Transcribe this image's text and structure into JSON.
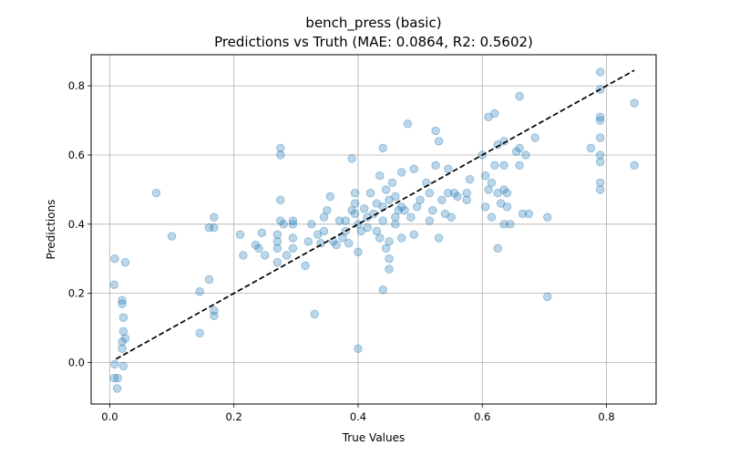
{
  "chart_data": {
    "type": "scatter",
    "title_line1": "bench_press (basic)",
    "title_line2": "Predictions vs Truth (MAE: 0.0864, R2: 0.5602)",
    "xlabel": "True Values",
    "ylabel": "Predictions",
    "xlim": [
      -0.03,
      0.88
    ],
    "ylim": [
      -0.12,
      0.89
    ],
    "xticks": [
      0.0,
      0.2,
      0.4,
      0.6,
      0.8
    ],
    "xtick_labels": [
      "0.0",
      "0.2",
      "0.4",
      "0.6",
      "0.8"
    ],
    "yticks": [
      0.0,
      0.2,
      0.4,
      0.6,
      0.8
    ],
    "ytick_labels": [
      "0.0",
      "0.2",
      "0.4",
      "0.6",
      "0.8"
    ],
    "grid": true,
    "point_color": "#1f77b4",
    "reference_line": {
      "style": "dashed",
      "color": "#000000",
      "x": [
        0.01,
        0.845
      ],
      "y": [
        0.01,
        0.845
      ]
    },
    "points": [
      [
        0.008,
        0.3
      ],
      [
        0.007,
        0.225
      ],
      [
        0.008,
        -0.005
      ],
      [
        0.007,
        -0.045
      ],
      [
        0.013,
        -0.045
      ],
      [
        0.012,
        -0.075
      ],
      [
        0.02,
        0.18
      ],
      [
        0.02,
        0.17
      ],
      [
        0.022,
        0.13
      ],
      [
        0.022,
        0.09
      ],
      [
        0.02,
        0.06
      ],
      [
        0.02,
        0.04
      ],
      [
        0.022,
        -0.01
      ],
      [
        0.025,
        0.29
      ],
      [
        0.025,
        0.07
      ],
      [
        0.075,
        0.49
      ],
      [
        0.1,
        0.365
      ],
      [
        0.145,
        0.085
      ],
      [
        0.145,
        0.205
      ],
      [
        0.16,
        0.24
      ],
      [
        0.16,
        0.39
      ],
      [
        0.168,
        0.39
      ],
      [
        0.168,
        0.42
      ],
      [
        0.168,
        0.15
      ],
      [
        0.168,
        0.135
      ],
      [
        0.21,
        0.37
      ],
      [
        0.215,
        0.31
      ],
      [
        0.235,
        0.34
      ],
      [
        0.24,
        0.33
      ],
      [
        0.245,
        0.375
      ],
      [
        0.25,
        0.31
      ],
      [
        0.27,
        0.35
      ],
      [
        0.27,
        0.33
      ],
      [
        0.27,
        0.29
      ],
      [
        0.27,
        0.37
      ],
      [
        0.275,
        0.62
      ],
      [
        0.275,
        0.6
      ],
      [
        0.275,
        0.47
      ],
      [
        0.275,
        0.41
      ],
      [
        0.28,
        0.4
      ],
      [
        0.285,
        0.31
      ],
      [
        0.295,
        0.36
      ],
      [
        0.295,
        0.41
      ],
      [
        0.295,
        0.4
      ],
      [
        0.295,
        0.33
      ],
      [
        0.315,
        0.28
      ],
      [
        0.32,
        0.35
      ],
      [
        0.325,
        0.4
      ],
      [
        0.33,
        0.14
      ],
      [
        0.335,
        0.37
      ],
      [
        0.34,
        0.345
      ],
      [
        0.345,
        0.38
      ],
      [
        0.345,
        0.42
      ],
      [
        0.35,
        0.44
      ],
      [
        0.355,
        0.48
      ],
      [
        0.36,
        0.35
      ],
      [
        0.365,
        0.34
      ],
      [
        0.37,
        0.41
      ],
      [
        0.375,
        0.36
      ],
      [
        0.38,
        0.38
      ],
      [
        0.38,
        0.41
      ],
      [
        0.385,
        0.345
      ],
      [
        0.39,
        0.59
      ],
      [
        0.39,
        0.44
      ],
      [
        0.395,
        0.49
      ],
      [
        0.395,
        0.46
      ],
      [
        0.395,
        0.43
      ],
      [
        0.4,
        0.32
      ],
      [
        0.4,
        0.04
      ],
      [
        0.4,
        0.4
      ],
      [
        0.405,
        0.38
      ],
      [
        0.41,
        0.445
      ],
      [
        0.415,
        0.42
      ],
      [
        0.415,
        0.39
      ],
      [
        0.42,
        0.49
      ],
      [
        0.425,
        0.43
      ],
      [
        0.43,
        0.46
      ],
      [
        0.43,
        0.38
      ],
      [
        0.435,
        0.36
      ],
      [
        0.435,
        0.54
      ],
      [
        0.44,
        0.41
      ],
      [
        0.44,
        0.45
      ],
      [
        0.44,
        0.62
      ],
      [
        0.44,
        0.21
      ],
      [
        0.445,
        0.33
      ],
      [
        0.445,
        0.5
      ],
      [
        0.45,
        0.47
      ],
      [
        0.45,
        0.35
      ],
      [
        0.45,
        0.3
      ],
      [
        0.45,
        0.27
      ],
      [
        0.455,
        0.52
      ],
      [
        0.46,
        0.48
      ],
      [
        0.46,
        0.42
      ],
      [
        0.46,
        0.4
      ],
      [
        0.465,
        0.44
      ],
      [
        0.47,
        0.55
      ],
      [
        0.47,
        0.36
      ],
      [
        0.47,
        0.45
      ],
      [
        0.475,
        0.44
      ],
      [
        0.48,
        0.69
      ],
      [
        0.485,
        0.42
      ],
      [
        0.49,
        0.56
      ],
      [
        0.49,
        0.37
      ],
      [
        0.495,
        0.45
      ],
      [
        0.5,
        0.47
      ],
      [
        0.51,
        0.52
      ],
      [
        0.515,
        0.41
      ],
      [
        0.515,
        0.49
      ],
      [
        0.52,
        0.44
      ],
      [
        0.525,
        0.67
      ],
      [
        0.525,
        0.57
      ],
      [
        0.53,
        0.64
      ],
      [
        0.53,
        0.36
      ],
      [
        0.535,
        0.47
      ],
      [
        0.54,
        0.43
      ],
      [
        0.545,
        0.56
      ],
      [
        0.545,
        0.49
      ],
      [
        0.55,
        0.42
      ],
      [
        0.555,
        0.49
      ],
      [
        0.56,
        0.48
      ],
      [
        0.575,
        0.49
      ],
      [
        0.575,
        0.47
      ],
      [
        0.58,
        0.53
      ],
      [
        0.6,
        0.6
      ],
      [
        0.605,
        0.54
      ],
      [
        0.605,
        0.45
      ],
      [
        0.61,
        0.71
      ],
      [
        0.61,
        0.5
      ],
      [
        0.615,
        0.52
      ],
      [
        0.615,
        0.42
      ],
      [
        0.62,
        0.57
      ],
      [
        0.62,
        0.72
      ],
      [
        0.625,
        0.63
      ],
      [
        0.625,
        0.49
      ],
      [
        0.625,
        0.33
      ],
      [
        0.63,
        0.46
      ],
      [
        0.635,
        0.64
      ],
      [
        0.635,
        0.57
      ],
      [
        0.635,
        0.5
      ],
      [
        0.635,
        0.4
      ],
      [
        0.64,
        0.45
      ],
      [
        0.64,
        0.49
      ],
      [
        0.645,
        0.4
      ],
      [
        0.655,
        0.61
      ],
      [
        0.66,
        0.77
      ],
      [
        0.66,
        0.62
      ],
      [
        0.66,
        0.57
      ],
      [
        0.665,
        0.43
      ],
      [
        0.67,
        0.6
      ],
      [
        0.675,
        0.43
      ],
      [
        0.685,
        0.65
      ],
      [
        0.705,
        0.42
      ],
      [
        0.705,
        0.19
      ],
      [
        0.775,
        0.62
      ],
      [
        0.79,
        0.84
      ],
      [
        0.79,
        0.79
      ],
      [
        0.79,
        0.71
      ],
      [
        0.79,
        0.7
      ],
      [
        0.79,
        0.65
      ],
      [
        0.79,
        0.6
      ],
      [
        0.79,
        0.58
      ],
      [
        0.79,
        0.52
      ],
      [
        0.79,
        0.5
      ],
      [
        0.845,
        0.75
      ],
      [
        0.845,
        0.57
      ]
    ]
  }
}
